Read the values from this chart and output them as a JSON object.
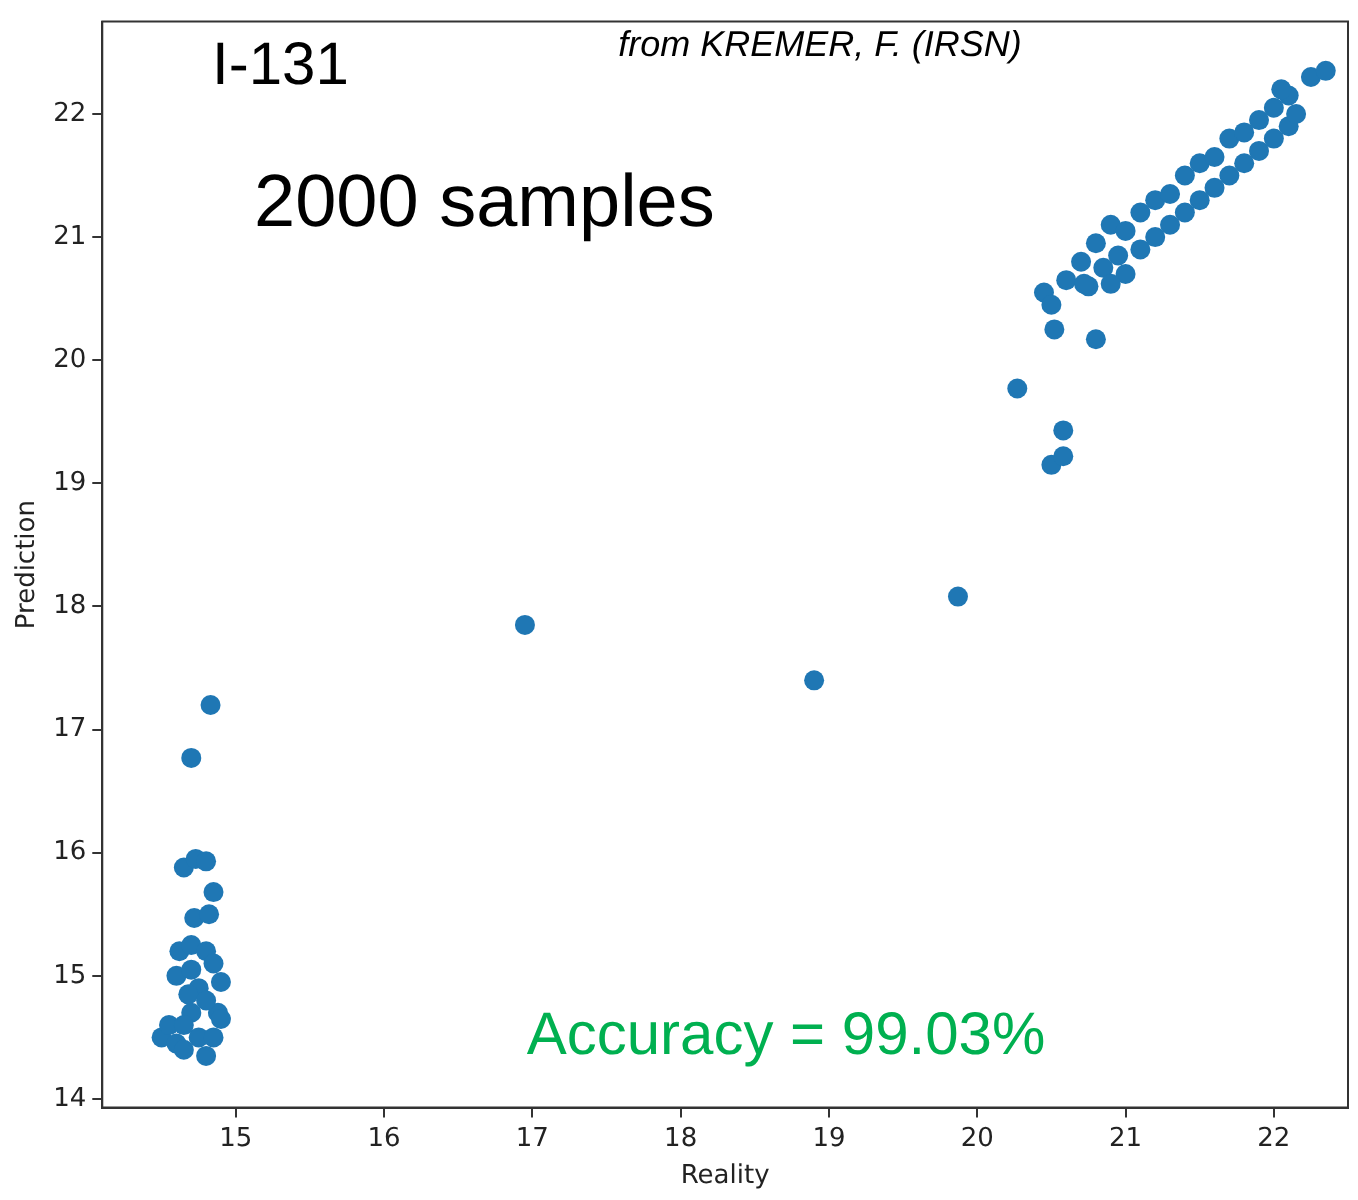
{
  "chart_data": {
    "type": "scatter",
    "xlabel": "Reality",
    "ylabel": "Prediction",
    "annotations": [
      "I-131",
      "from KREMER, F. (IRSN)",
      "2000 samples",
      "Accuracy = 99.03%"
    ],
    "xlim": [
      14.1,
      22.5
    ],
    "xticks": [
      15,
      16,
      17,
      18,
      19,
      20,
      21,
      22
    ],
    "ylim": [
      13.93,
      22.75
    ],
    "yticks": [
      14,
      15,
      16,
      17,
      18,
      19,
      20,
      21,
      22
    ],
    "grid": false,
    "marker": "circle",
    "series": [
      {
        "color": "#1f77b4",
        "x": [
          14.5,
          14.55,
          14.6,
          14.65,
          14.6,
          14.62,
          14.7,
          14.8,
          14.85,
          14.9,
          14.88,
          14.9,
          14.8,
          14.75,
          14.7,
          14.75,
          14.68,
          14.8,
          14.85,
          14.7,
          14.65,
          14.72,
          14.82,
          14.85,
          14.65,
          14.73,
          14.8,
          14.7,
          14.83,
          16.95,
          18.9,
          19.87,
          20.27,
          20.5,
          20.58,
          20.58,
          20.8,
          20.52,
          20.45,
          20.5,
          20.6,
          20.7,
          20.75,
          20.8,
          20.85,
          20.9,
          20.95,
          21.0,
          21.0,
          21.1,
          21.1,
          21.2,
          21.2,
          21.3,
          21.3,
          21.4,
          21.4,
          21.5,
          21.5,
          21.6,
          21.6,
          21.7,
          21.7,
          21.8,
          21.8,
          21.9,
          21.9,
          22.0,
          22.0,
          22.1,
          22.1,
          22.15,
          22.05,
          22.25,
          22.35,
          20.9,
          20.72
        ],
        "values": [
          14.5,
          14.6,
          14.45,
          14.4,
          15.0,
          15.2,
          15.25,
          15.2,
          15.1,
          14.95,
          14.7,
          14.65,
          14.35,
          14.5,
          14.7,
          14.9,
          14.85,
          14.8,
          14.5,
          15.05,
          14.6,
          15.47,
          15.5,
          15.68,
          15.88,
          15.95,
          15.93,
          16.77,
          17.2,
          17.85,
          17.4,
          18.08,
          19.77,
          19.15,
          19.22,
          19.43,
          20.17,
          20.25,
          20.55,
          20.45,
          20.65,
          20.8,
          20.6,
          20.95,
          20.75,
          21.1,
          20.85,
          21.05,
          20.7,
          21.2,
          20.9,
          21.3,
          21.0,
          21.35,
          21.1,
          21.5,
          21.2,
          21.6,
          21.3,
          21.65,
          21.4,
          21.8,
          21.5,
          21.85,
          21.6,
          21.95,
          21.7,
          22.05,
          21.8,
          22.15,
          21.9,
          22.0,
          22.2,
          22.3,
          22.35,
          20.62,
          20.62
        ]
      }
    ]
  }
}
